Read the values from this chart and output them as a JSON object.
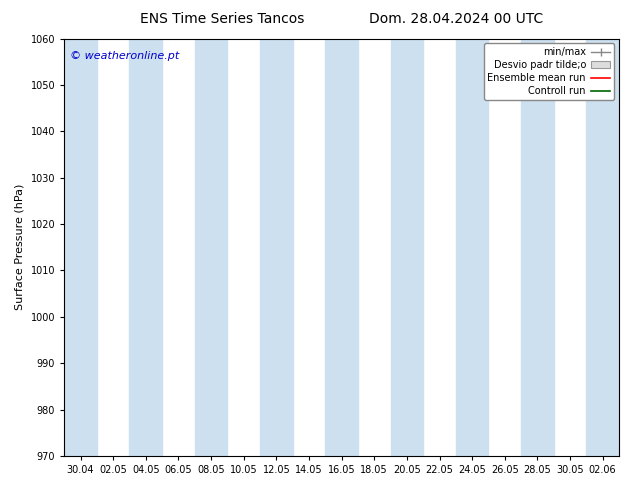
{
  "title_left": "ENS Time Series Tancos",
  "title_right": "Dom. 28.04.2024 00 UTC",
  "ylabel": "Surface Pressure (hPa)",
  "ylim": [
    970,
    1060
  ],
  "yticks": [
    970,
    980,
    990,
    1000,
    1010,
    1020,
    1030,
    1040,
    1050,
    1060
  ],
  "x_labels": [
    "30.04",
    "02.05",
    "04.05",
    "06.05",
    "08.05",
    "10.05",
    "12.05",
    "14.05",
    "16.05",
    "18.05",
    "20.05",
    "22.05",
    "24.05",
    "26.05",
    "28.05",
    "30.05",
    "02.06"
  ],
  "watermark": "© weatheronline.pt",
  "legend_entries": [
    {
      "label": "min/max",
      "color": "#aaaaaa",
      "type": "minmax"
    },
    {
      "label": "Desvio padr tilde;o",
      "color": "#cccccc",
      "type": "bar"
    },
    {
      "label": "Ensemble mean run",
      "color": "red",
      "type": "line"
    },
    {
      "label": "Controll run",
      "color": "green",
      "type": "line"
    }
  ],
  "bg_color": "#ffffff",
  "plot_bg_color": "#ffffff",
  "band_color": "#cde0f0",
  "band_indices": [
    0,
    2,
    4,
    6,
    8,
    10,
    12,
    14,
    16
  ],
  "title_fontsize": 10,
  "tick_fontsize": 7,
  "ylabel_fontsize": 8,
  "watermark_fontsize": 8,
  "watermark_color": "#0000cc",
  "legend_fontsize": 7
}
